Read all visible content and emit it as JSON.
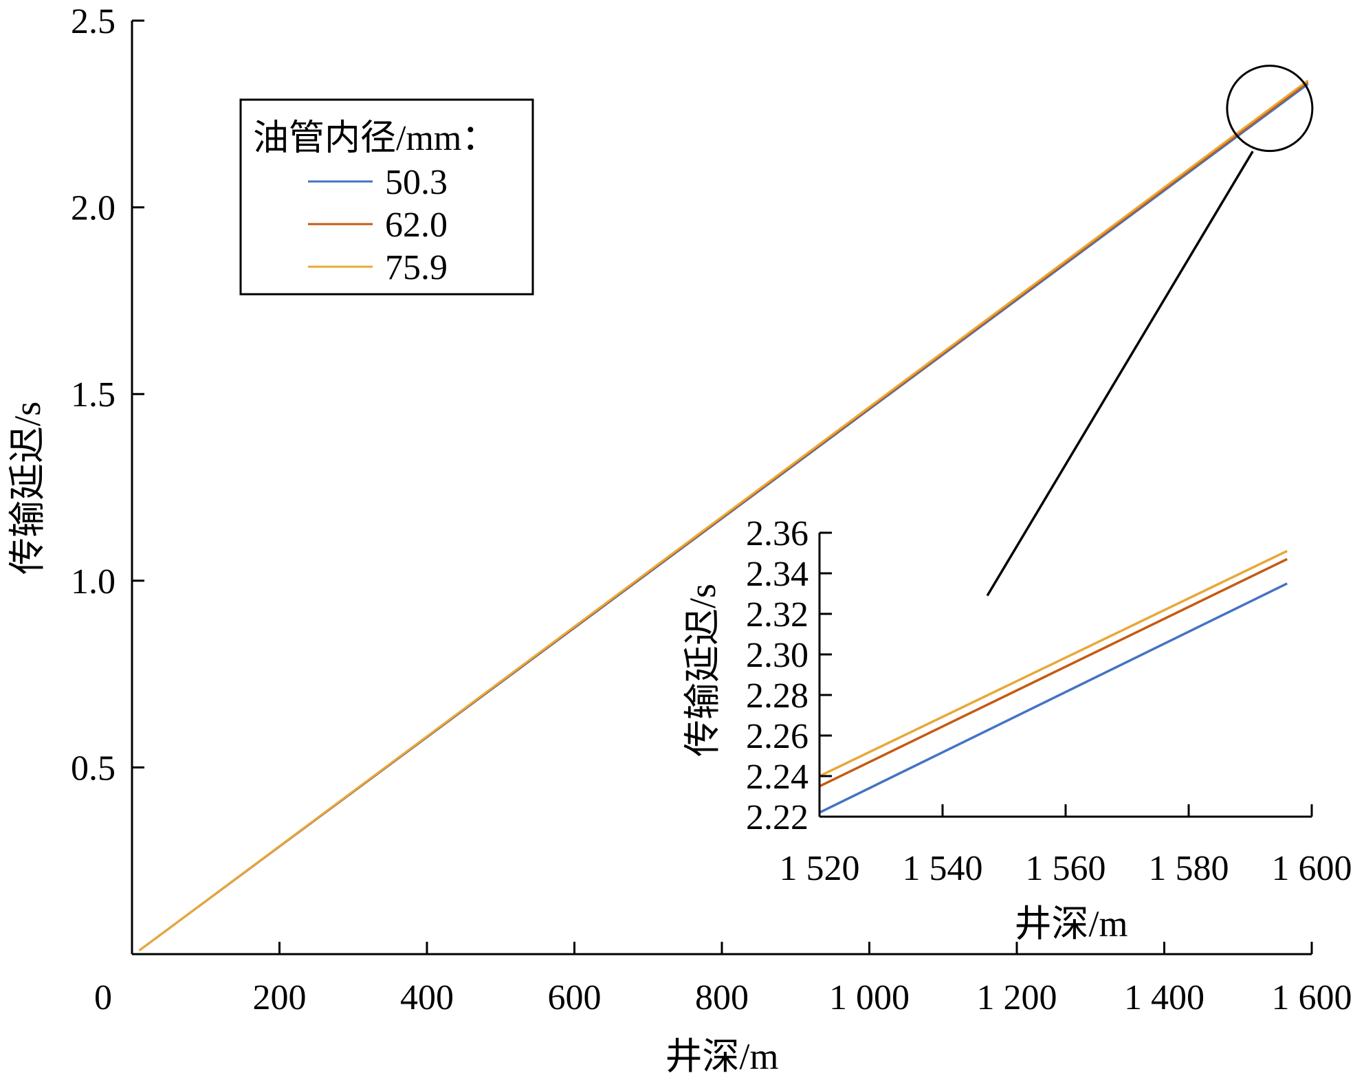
{
  "chart_data": [
    {
      "type": "line",
      "xlabel": "井深/m",
      "ylabel": "传输延迟/s",
      "xlim": [
        0,
        1600
      ],
      "ylim": [
        0,
        2.5
      ],
      "xticks": [
        {
          "value": 0,
          "label": "0"
        },
        {
          "value": 200,
          "label": "200"
        },
        {
          "value": 400,
          "label": "400"
        },
        {
          "value": 600,
          "label": "600"
        },
        {
          "value": 800,
          "label": "800"
        },
        {
          "value": 1000,
          "label": "1 000"
        },
        {
          "value": 1200,
          "label": "1 200"
        },
        {
          "value": 1400,
          "label": "1 400"
        },
        {
          "value": 1600,
          "label": "1 600"
        }
      ],
      "yticks": [
        {
          "value": 0.5,
          "label": "0.5"
        },
        {
          "value": 1.0,
          "label": "1.0"
        },
        {
          "value": 1.5,
          "label": "1.5"
        },
        {
          "value": 2.0,
          "label": "2.0"
        },
        {
          "value": 2.5,
          "label": "2.5"
        }
      ],
      "legend": {
        "title": "油管内径/mm：",
        "placement": "top-left"
      },
      "series": [
        {
          "name": "50.3",
          "color": "#4472C4",
          "x": [
            10,
            1595
          ],
          "y": [
            0.01,
            2.33
          ]
        },
        {
          "name": "62.0",
          "color": "#C55A11",
          "x": [
            10,
            1595
          ],
          "y": [
            0.01,
            2.335
          ]
        },
        {
          "name": "75.9",
          "color": "#E8A838",
          "x": [
            10,
            1595
          ],
          "y": [
            0.01,
            2.34
          ]
        }
      ],
      "annotations": [
        {
          "type": "circle",
          "x": 1543,
          "y": 2.265,
          "note": "zoom region"
        },
        {
          "type": "connector",
          "from": [
            1520,
            2.15
          ],
          "to": [
            1160,
            0.96
          ]
        }
      ]
    },
    {
      "type": "line",
      "inset": true,
      "xlabel": "井深/m",
      "ylabel": "传输延迟/s",
      "xlim": [
        1520,
        1600
      ],
      "ylim": [
        2.22,
        2.36
      ],
      "xticks": [
        {
          "value": 1520,
          "label": "1 520"
        },
        {
          "value": 1540,
          "label": "1 540"
        },
        {
          "value": 1560,
          "label": "1 560"
        },
        {
          "value": 1580,
          "label": "1 580"
        },
        {
          "value": 1600,
          "label": "1 600"
        }
      ],
      "yticks": [
        {
          "value": 2.22,
          "label": "2.22"
        },
        {
          "value": 2.24,
          "label": "2.24"
        },
        {
          "value": 2.26,
          "label": "2.26"
        },
        {
          "value": 2.28,
          "label": "2.28"
        },
        {
          "value": 2.3,
          "label": "2.30"
        },
        {
          "value": 2.32,
          "label": "2.32"
        },
        {
          "value": 2.34,
          "label": "2.34"
        },
        {
          "value": 2.36,
          "label": "2.36"
        }
      ],
      "series": [
        {
          "name": "50.3",
          "color": "#4472C4",
          "x": [
            1520,
            1596
          ],
          "y": [
            2.222,
            2.335
          ]
        },
        {
          "name": "62.0",
          "color": "#C55A11",
          "x": [
            1520,
            1596
          ],
          "y": [
            2.235,
            2.347
          ]
        },
        {
          "name": "75.9",
          "color": "#E8A838",
          "x": [
            1520,
            1596
          ],
          "y": [
            2.24,
            2.351
          ]
        }
      ]
    }
  ]
}
